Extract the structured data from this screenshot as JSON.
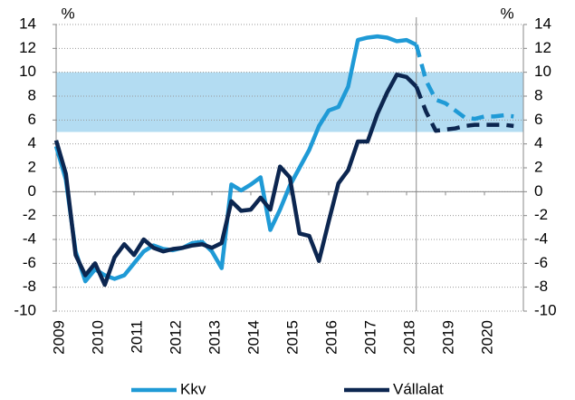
{
  "chart_data": {
    "type": "line",
    "y_label": "%",
    "y2_label": "%",
    "x": [
      2009,
      2009.25,
      2009.5,
      2009.75,
      2010,
      2010.25,
      2010.5,
      2010.75,
      2011,
      2011.25,
      2011.5,
      2011.75,
      2012,
      2012.25,
      2012.5,
      2012.75,
      2013,
      2013.25,
      2013.5,
      2013.75,
      2014,
      2014.25,
      2014.5,
      2014.75,
      2015,
      2015.25,
      2015.5,
      2015.75,
      2016,
      2016.25,
      2016.5,
      2016.75,
      2017,
      2017.25,
      2017.5,
      2017.75,
      2018,
      2018.25,
      2018.5,
      2018.75,
      2019,
      2019.25,
      2019.5,
      2019.75,
      2020,
      2020.25,
      2020.5,
      2020.75
    ],
    "series": [
      {
        "name": "Kkv",
        "color": "#1f9ad6",
        "values": [
          3.8,
          1,
          -5,
          -7.5,
          -6.5,
          -7,
          -7.3,
          -7,
          -6,
          -5,
          -4.5,
          -4.8,
          -4.9,
          -4.7,
          -4.3,
          -4.2,
          -5,
          -6.4,
          0.6,
          0.1,
          0.6,
          1.2,
          -3.2,
          -1.5,
          0.5,
          2,
          3.5,
          5.5,
          6.8,
          7.1,
          8.8,
          12.7,
          12.9,
          13,
          12.9,
          12.6,
          12.7,
          12.3,
          9.3,
          7.7,
          7.4,
          6.8,
          6.2,
          6.1,
          6.3,
          6.3,
          6.4,
          6.3
        ]
      },
      {
        "name": "Vállalat",
        "color": "#0c2650",
        "values": [
          4.3,
          1.5,
          -5.3,
          -7,
          -6,
          -7.8,
          -5.5,
          -4.4,
          -5.3,
          -4,
          -4.7,
          -5,
          -4.8,
          -4.7,
          -4.5,
          -4.4,
          -4.7,
          -4.3,
          -0.8,
          -1.6,
          -1.5,
          -0.5,
          -1.5,
          2.1,
          1.2,
          -3.5,
          -3.7,
          -5.8,
          -2.5,
          0.7,
          1.8,
          4.2,
          4.2,
          6.5,
          8.3,
          9.8,
          9.6,
          8.8,
          6.7,
          5.1,
          5.2,
          5.3,
          5.5,
          5.6,
          5.6,
          5.6,
          5.6,
          5.5
        ]
      }
    ],
    "forecast_x": 2018.25,
    "band": [
      5,
      10
    ],
    "band_color": "#b3dcf2",
    "xlim": [
      2009,
      2021
    ],
    "xticks": [
      2009,
      2010,
      2011,
      2012,
      2013,
      2014,
      2015,
      2016,
      2017,
      2018,
      2019,
      2020
    ],
    "ylim": [
      -10,
      14
    ],
    "yticks": [
      -10,
      -8,
      -6,
      -4,
      -2,
      0,
      2,
      4,
      6,
      8,
      10,
      12,
      14
    ],
    "y2lim": [
      -10,
      14
    ],
    "y2ticks": [
      -10,
      -8,
      -6,
      -4,
      -2,
      0,
      2,
      4,
      6,
      8,
      10,
      12,
      14
    ],
    "grid": true
  }
}
